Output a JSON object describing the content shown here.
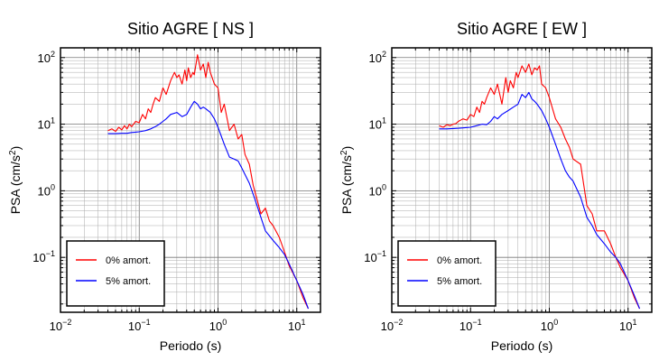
{
  "chart_data": [
    {
      "type": "line",
      "title": "Sitio AGRE [ NS ]",
      "xlabel": "Periodo (s)",
      "ylabel": "PSA (cm/s²)",
      "xscale": "log",
      "yscale": "log",
      "xlim": [
        0.01,
        20
      ],
      "ylim": [
        0.015,
        140
      ],
      "grid": true,
      "legend_position": "bottom-left",
      "x_ticks": [
        {
          "value": 0.01,
          "base": "10",
          "exp": "−2"
        },
        {
          "value": 0.1,
          "base": "10",
          "exp": "−1"
        },
        {
          "value": 1,
          "base": "10",
          "exp": "0"
        },
        {
          "value": 10,
          "base": "10",
          "exp": "1"
        }
      ],
      "y_ticks": [
        {
          "value": 0.1,
          "base": "10",
          "exp": "−1"
        },
        {
          "value": 1,
          "base": "10",
          "exp": "0"
        },
        {
          "value": 10,
          "base": "10",
          "exp": "1"
        },
        {
          "value": 100,
          "base": "10",
          "exp": "2"
        }
      ],
      "series": [
        {
          "name": "0% amort.",
          "color": "#ff0000",
          "x": [
            0.04,
            0.045,
            0.05,
            0.055,
            0.06,
            0.065,
            0.07,
            0.075,
            0.08,
            0.09,
            0.1,
            0.11,
            0.12,
            0.13,
            0.14,
            0.15,
            0.16,
            0.18,
            0.2,
            0.22,
            0.25,
            0.28,
            0.3,
            0.32,
            0.35,
            0.38,
            0.4,
            0.42,
            0.45,
            0.48,
            0.5,
            0.55,
            0.6,
            0.65,
            0.7,
            0.75,
            0.8,
            0.9,
            1.0,
            1.1,
            1.2,
            1.4,
            1.6,
            1.8,
            2.0,
            2.2,
            2.5,
            2.8,
            3.0,
            3.5,
            4.0,
            4.5,
            5.0,
            6.0,
            7.0,
            8.0,
            10.0,
            12.0,
            14.0
          ],
          "y": [
            8,
            8.5,
            7.8,
            9,
            8.2,
            9.5,
            8.5,
            10,
            9.2,
            11,
            10.5,
            14,
            12,
            17,
            15,
            20,
            25,
            22,
            35,
            28,
            45,
            60,
            50,
            55,
            40,
            65,
            45,
            70,
            50,
            60,
            55,
            110,
            65,
            80,
            50,
            85,
            60,
            40,
            35,
            15,
            20,
            8,
            10,
            6,
            7,
            3.5,
            2.5,
            1.2,
            0.9,
            0.45,
            0.55,
            0.35,
            0.3,
            0.2,
            0.12,
            0.075,
            0.045,
            0.025,
            0.017
          ]
        },
        {
          "name": "5% amort.",
          "color": "#0000ff",
          "x": [
            0.04,
            0.05,
            0.06,
            0.07,
            0.08,
            0.09,
            0.1,
            0.12,
            0.14,
            0.16,
            0.18,
            0.2,
            0.22,
            0.25,
            0.3,
            0.35,
            0.4,
            0.45,
            0.5,
            0.55,
            0.6,
            0.65,
            0.7,
            0.8,
            0.9,
            1.0,
            1.2,
            1.4,
            1.6,
            1.8,
            2.0,
            2.5,
            3.0,
            3.5,
            4.0,
            5.0,
            6.0,
            7.0,
            8.0,
            10.0,
            12.0,
            14.0
          ],
          "y": [
            7.2,
            7.2,
            7.3,
            7.3,
            7.5,
            7.6,
            7.7,
            8,
            8.5,
            9.2,
            10,
            11,
            12,
            14,
            15,
            13,
            14,
            18,
            22,
            20,
            17,
            18,
            17,
            15,
            12,
            9,
            5,
            3.2,
            3,
            2.8,
            2.2,
            1.3,
            0.7,
            0.4,
            0.25,
            0.18,
            0.14,
            0.11,
            0.08,
            0.045,
            0.028,
            0.017
          ]
        }
      ]
    },
    {
      "type": "line",
      "title": "Sitio AGRE [ EW ]",
      "xlabel": "Periodo (s)",
      "ylabel": "PSA (cm/s²)",
      "xscale": "log",
      "yscale": "log",
      "xlim": [
        0.01,
        20
      ],
      "ylim": [
        0.015,
        140
      ],
      "grid": true,
      "legend_position": "bottom-left",
      "x_ticks": [
        {
          "value": 0.01,
          "base": "10",
          "exp": "−2"
        },
        {
          "value": 0.1,
          "base": "10",
          "exp": "−1"
        },
        {
          "value": 1,
          "base": "10",
          "exp": "0"
        },
        {
          "value": 10,
          "base": "10",
          "exp": "1"
        }
      ],
      "y_ticks": [
        {
          "value": 0.1,
          "base": "10",
          "exp": "−1"
        },
        {
          "value": 1,
          "base": "10",
          "exp": "0"
        },
        {
          "value": 10,
          "base": "10",
          "exp": "1"
        },
        {
          "value": 100,
          "base": "10",
          "exp": "2"
        }
      ],
      "series": [
        {
          "name": "0% amort.",
          "color": "#ff0000",
          "x": [
            0.04,
            0.045,
            0.05,
            0.055,
            0.06,
            0.065,
            0.07,
            0.08,
            0.09,
            0.1,
            0.11,
            0.12,
            0.13,
            0.14,
            0.15,
            0.16,
            0.18,
            0.2,
            0.22,
            0.25,
            0.28,
            0.3,
            0.32,
            0.35,
            0.38,
            0.4,
            0.45,
            0.5,
            0.55,
            0.6,
            0.65,
            0.7,
            0.75,
            0.8,
            0.9,
            1.0,
            1.2,
            1.4,
            1.6,
            1.8,
            2.0,
            2.5,
            3.0,
            3.5,
            4.0,
            5.0,
            6.0,
            7.0,
            8.0,
            10.0,
            12.0,
            14.0
          ],
          "y": [
            9.5,
            9,
            9.8,
            9.5,
            10,
            10.2,
            11,
            12,
            11.5,
            14,
            13,
            18,
            15,
            22,
            20,
            25,
            35,
            28,
            40,
            20,
            50,
            30,
            45,
            35,
            60,
            50,
            75,
            60,
            80,
            55,
            70,
            65,
            75,
            40,
            35,
            25,
            12,
            9,
            6,
            4.5,
            3,
            2.5,
            0.6,
            0.45,
            0.25,
            0.25,
            0.16,
            0.1,
            0.07,
            0.045,
            0.025,
            0.017
          ]
        },
        {
          "name": "5% amort.",
          "color": "#0000ff",
          "x": [
            0.04,
            0.05,
            0.06,
            0.07,
            0.08,
            0.09,
            0.1,
            0.12,
            0.14,
            0.16,
            0.18,
            0.2,
            0.22,
            0.25,
            0.3,
            0.35,
            0.4,
            0.45,
            0.5,
            0.55,
            0.6,
            0.65,
            0.7,
            0.8,
            0.9,
            1.0,
            1.2,
            1.4,
            1.6,
            1.8,
            2.0,
            2.5,
            3.0,
            3.5,
            4.0,
            5.0,
            6.0,
            7.0,
            8.0,
            10.0,
            12.0,
            14.0
          ],
          "y": [
            8.5,
            8.5,
            8.6,
            8.7,
            8.8,
            8.9,
            9,
            9.5,
            10,
            9.8,
            11,
            13,
            12,
            14,
            16,
            18,
            20,
            28,
            25,
            30,
            24,
            22,
            20,
            16,
            12,
            9,
            5,
            3,
            2,
            1.6,
            1.4,
            0.8,
            0.4,
            0.3,
            0.22,
            0.16,
            0.12,
            0.1,
            0.08,
            0.045,
            0.027,
            0.017
          ]
        }
      ]
    }
  ]
}
